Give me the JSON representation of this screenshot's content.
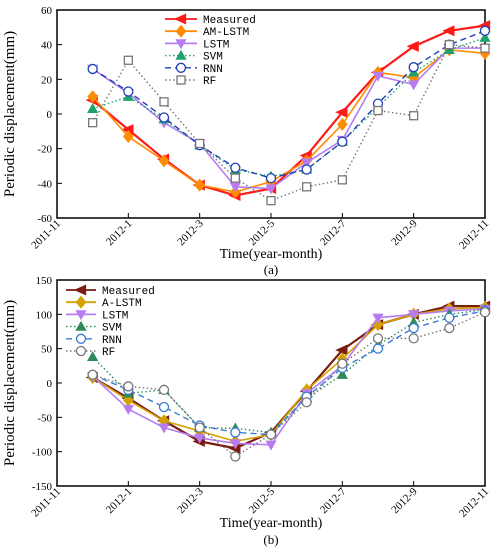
{
  "chart_data": [
    {
      "type": "line",
      "caption": "(a)",
      "xlabel": "Time(year-month)",
      "ylabel": "Periodic displacement(mm)",
      "ylim": [
        -60,
        60
      ],
      "yticks": [
        -60,
        -40,
        -20,
        0,
        20,
        40,
        60
      ],
      "xticks": [
        "2011-11",
        "2012-1",
        "2012-3",
        "2012-5",
        "2012-7",
        "2012-9",
        "2012-11"
      ],
      "grid": false,
      "legend": "top-center",
      "x": [
        "2011-12",
        "2012-1",
        "2012-2",
        "2012-3",
        "2012-4",
        "2012-5",
        "2012-6",
        "2012-7",
        "2012-8",
        "2012-9",
        "2012-10",
        "2012-11"
      ],
      "series": [
        {
          "name": "Measured",
          "color": "#ff1a1a",
          "marker": "triangle-left",
          "dash": "solid",
          "values": [
            8,
            -9,
            -26,
            -41,
            -47,
            -43,
            -24,
            1,
            24,
            39,
            48,
            51
          ]
        },
        {
          "name": "AM-LSTM",
          "color": "#ff8c00",
          "marker": "diamond",
          "dash": "solid",
          "values": [
            10,
            -13,
            -27,
            -41,
            -45,
            -39,
            -27,
            -6,
            24,
            21,
            37,
            35
          ]
        },
        {
          "name": "LSTM",
          "color": "#b87cf2",
          "marker": "triangle-down",
          "dash": "solid",
          "values": [
            26,
            12,
            -5,
            -17,
            -42,
            -43,
            -28,
            -15,
            22,
            17,
            38,
            38
          ]
        },
        {
          "name": "SVM",
          "color": "#1fa36c",
          "marker": "triangle-up",
          "dash": "dotted",
          "values": [
            3,
            10,
            -3,
            -18,
            -32,
            -36,
            -32,
            -16,
            4,
            24,
            37,
            44
          ]
        },
        {
          "name": "RNN",
          "color": "#1f3fb8",
          "marker": "circle",
          "dash": "dashed",
          "values": [
            26,
            13,
            -2,
            -18,
            -31,
            -37,
            -32,
            -16,
            6,
            27,
            40,
            48
          ]
        },
        {
          "name": "RF",
          "color": "#777777",
          "marker": "square",
          "dash": "dotted",
          "values": [
            -5,
            31,
            7,
            -17,
            -37,
            -50,
            -42,
            -38,
            2,
            -1,
            40,
            38
          ]
        }
      ]
    },
    {
      "type": "line",
      "caption": "(b)",
      "xlabel": "Time(year-month)",
      "ylabel": "Periodic displacement(mm)",
      "ylim": [
        -150,
        150
      ],
      "yticks": [
        -150,
        -100,
        -50,
        0,
        50,
        100,
        150
      ],
      "xticks": [
        "2011-11",
        "2012-1",
        "2012-3",
        "2012-5",
        "2012-7",
        "2012-9",
        "2012-11"
      ],
      "grid": false,
      "legend": "top-left",
      "x": [
        "2011-12",
        "2012-1",
        "2012-2",
        "2012-3",
        "2012-4",
        "2012-5",
        "2012-6",
        "2012-7",
        "2012-8",
        "2012-9",
        "2012-10",
        "2012-11"
      ],
      "series": [
        {
          "name": "Measured",
          "color": "#7a1c10",
          "marker": "triangle-left",
          "dash": "solid",
          "values": [
            8,
            -22,
            -55,
            -85,
            -95,
            -72,
            -12,
            48,
            85,
            100,
            112,
            112
          ]
        },
        {
          "name": "A-LSTM",
          "color": "#d4a200",
          "marker": "diamond",
          "dash": "solid",
          "values": [
            8,
            -25,
            -55,
            -70,
            -85,
            -75,
            -10,
            35,
            85,
            100,
            108,
            110
          ]
        },
        {
          "name": "LSTM",
          "color": "#b87cf2",
          "marker": "triangle-down",
          "dash": "solid",
          "values": [
            10,
            -38,
            -65,
            -80,
            -88,
            -90,
            -15,
            25,
            95,
            100,
            105,
            108
          ]
        },
        {
          "name": "SVM",
          "color": "#2e8b57",
          "marker": "triangle-up",
          "dash": "dotted",
          "values": [
            38,
            -15,
            -10,
            -65,
            -66,
            -72,
            -22,
            12,
            55,
            88,
            100,
            107
          ]
        },
        {
          "name": "RNN",
          "color": "#3a7bd5",
          "marker": "circle",
          "dash": "dashed",
          "values": [
            12,
            -10,
            -35,
            -62,
            -72,
            -75,
            -20,
            22,
            50,
            80,
            95,
            105
          ]
        },
        {
          "name": "RF",
          "color": "#777777",
          "marker": "circle",
          "dash": "dotted",
          "values": [
            12,
            -5,
            -10,
            -65,
            -107,
            -75,
            -28,
            28,
            65,
            65,
            80,
            103
          ]
        }
      ]
    }
  ]
}
